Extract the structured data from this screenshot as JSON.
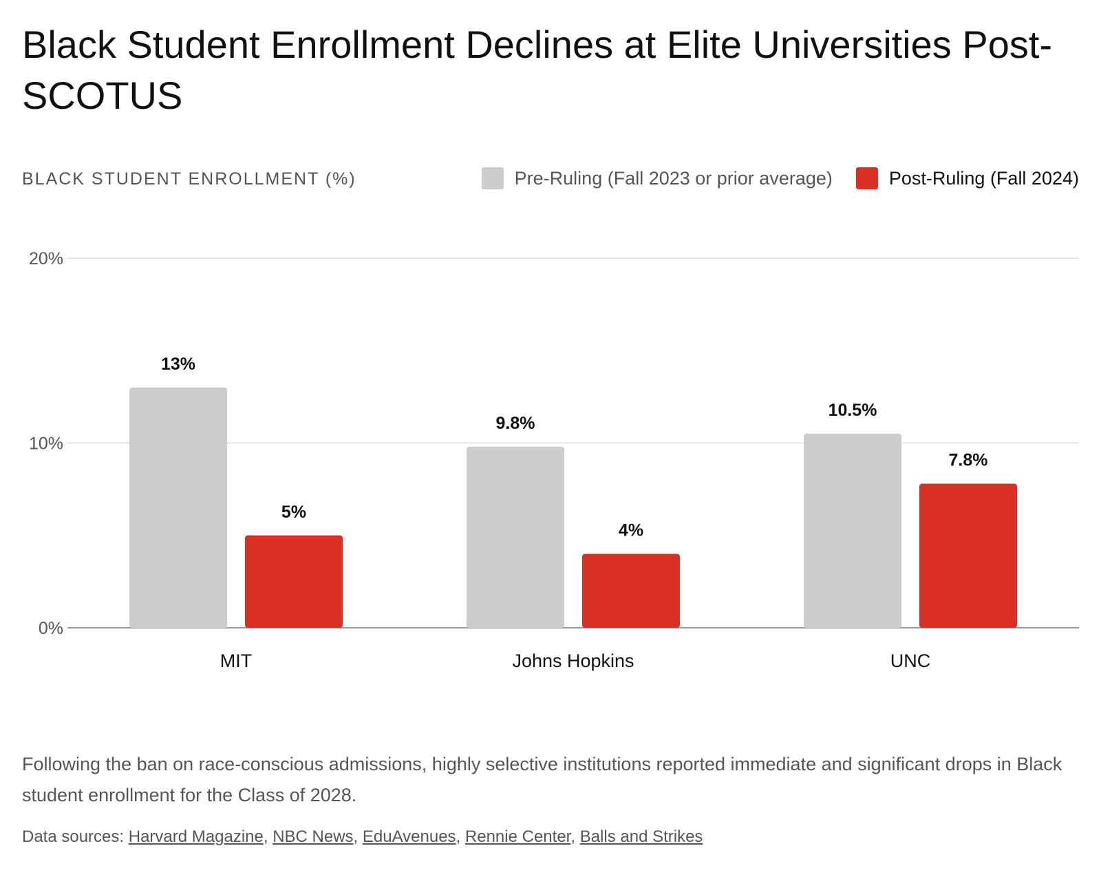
{
  "title": "Black Student Enrollment Declines at Elite Universities Post-SCOTUS",
  "caption": "Following the ban on race-conscious admissions, highly selective institutions reported immediate and significant drops in Black student enrollment for the Class of 2028.",
  "sources": {
    "label": "Data sources:",
    "links": [
      "Harvard Magazine",
      "NBC News",
      "EduAvenues",
      "Rennie Center",
      "Balls and Strikes"
    ]
  },
  "colors": {
    "pre": "#cccccc",
    "post": "#d93025",
    "grid": "#dddddd",
    "axis": "#999999"
  },
  "chart_data": {
    "type": "bar",
    "ylabel": "BLACK STUDENT ENROLLMENT (%)",
    "categories": [
      "MIT",
      "Johns Hopkins",
      "UNC"
    ],
    "series": [
      {
        "name": "Pre-Ruling (Fall 2023 or prior average)",
        "values": [
          13,
          9.8,
          10.5
        ],
        "labels": [
          "13%",
          "9.8%",
          "10.5%"
        ]
      },
      {
        "name": "Post-Ruling (Fall 2024)",
        "values": [
          5,
          4,
          7.8
        ],
        "labels": [
          "5%",
          "4%",
          "7.8%"
        ]
      }
    ],
    "ylim": [
      0,
      20
    ],
    "yticks": [
      0,
      10,
      20
    ],
    "ytick_labels": [
      "0%",
      "10%",
      "20%"
    ],
    "grid": true,
    "legend": "top-right"
  }
}
